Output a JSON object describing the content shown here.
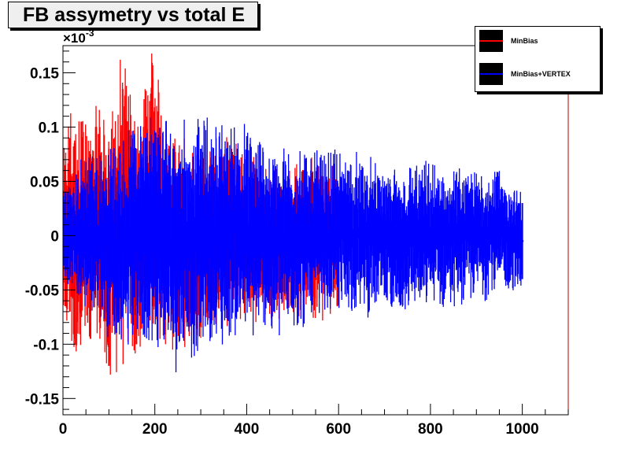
{
  "chart_data": {
    "type": "scatter",
    "title": "FB assymetry vs total E",
    "xlabel": "",
    "ylabel": "",
    "y_multiplier": "×10",
    "y_exponent": "-3",
    "xlim": [
      0,
      1100
    ],
    "ylim": [
      -0.165,
      0.175
    ],
    "x_ticks": [
      0,
      200,
      400,
      600,
      800,
      1000
    ],
    "x_tick_labels": [
      "0",
      "200",
      "400",
      "600",
      "800",
      "1000"
    ],
    "y_ticks": [
      -0.15,
      -0.1,
      -0.05,
      0,
      0.05,
      0.1,
      0.15
    ],
    "y_tick_labels": [
      "-0.15",
      "-0.1",
      "-0.05",
      "0",
      "0.05",
      "0.1",
      "0.15"
    ],
    "legend_position": "top-right",
    "series": [
      {
        "name": "MinBias",
        "color": "#ff0000",
        "x_range": [
          0,
          600
        ],
        "points": [
          {
            "x": 5,
            "y": 0.0,
            "err": 0.065
          },
          {
            "x": 15,
            "y": 0.01,
            "err": 0.08
          },
          {
            "x": 25,
            "y": -0.005,
            "err": 0.09
          },
          {
            "x": 40,
            "y": 0.015,
            "err": 0.09
          },
          {
            "x": 60,
            "y": -0.01,
            "err": 0.085
          },
          {
            "x": 80,
            "y": 0.01,
            "err": 0.09
          },
          {
            "x": 100,
            "y": -0.02,
            "err": 0.1
          },
          {
            "x": 130,
            "y": 0.03,
            "err": 0.105
          },
          {
            "x": 160,
            "y": -0.01,
            "err": 0.09
          },
          {
            "x": 195,
            "y": 0.04,
            "err": 0.105
          },
          {
            "x": 230,
            "y": 0.0,
            "err": 0.08
          },
          {
            "x": 270,
            "y": -0.01,
            "err": 0.07
          },
          {
            "x": 320,
            "y": 0.0,
            "err": 0.065
          },
          {
            "x": 380,
            "y": 0.005,
            "err": 0.06
          },
          {
            "x": 450,
            "y": -0.005,
            "err": 0.055
          }
        ]
      },
      {
        "name": "MinBias+VERTEX",
        "color": "#0000ff",
        "x_range": [
          0,
          1000
        ],
        "points": [
          {
            "x": 10,
            "y": 0.0,
            "err": 0.04
          },
          {
            "x": 60,
            "y": 0.005,
            "err": 0.055
          },
          {
            "x": 120,
            "y": -0.01,
            "err": 0.07
          },
          {
            "x": 180,
            "y": 0.01,
            "err": 0.08
          },
          {
            "x": 240,
            "y": -0.005,
            "err": 0.085
          },
          {
            "x": 300,
            "y": 0.0,
            "err": 0.08
          },
          {
            "x": 380,
            "y": 0.005,
            "err": 0.075
          },
          {
            "x": 460,
            "y": -0.005,
            "err": 0.065
          },
          {
            "x": 540,
            "y": 0.0,
            "err": 0.06
          },
          {
            "x": 620,
            "y": 0.005,
            "err": 0.055
          },
          {
            "x": 700,
            "y": -0.005,
            "err": 0.05
          },
          {
            "x": 780,
            "y": 0.0,
            "err": 0.05
          },
          {
            "x": 860,
            "y": 0.0,
            "err": 0.045
          },
          {
            "x": 940,
            "y": 0.005,
            "err": 0.045
          },
          {
            "x": 1000,
            "y": -0.005,
            "err": 0.035
          }
        ]
      }
    ]
  }
}
